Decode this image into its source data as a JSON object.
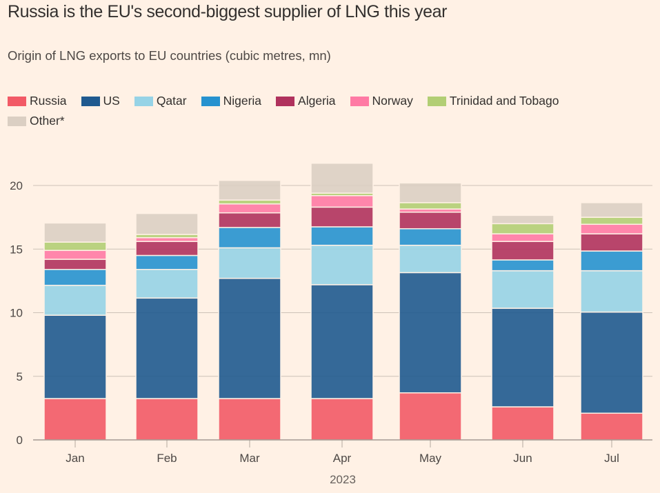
{
  "header": {
    "title": "Russia is the EU's second-biggest supplier of LNG this year",
    "subtitle": "Origin of LNG exports to EU countries (cubic metres, mn)"
  },
  "chart_data": {
    "type": "bar",
    "stacked": true,
    "title": "Russia is the EU's second-biggest supplier of LNG this year",
    "subtitle": "Origin of LNG exports to EU countries (cubic metres, mn)",
    "xlabel": "2023",
    "ylabel": "",
    "ylim": [
      0,
      22
    ],
    "yticks": [
      0,
      5,
      10,
      15,
      20
    ],
    "grid": true,
    "legend_position": "top-left",
    "categories": [
      "Jan",
      "Feb",
      "Mar",
      "Apr",
      "May",
      "Jun",
      "Jul"
    ],
    "series": [
      {
        "name": "Russia",
        "color": "#f25a66",
        "values": [
          3.25,
          3.25,
          3.25,
          3.25,
          3.7,
          2.6,
          2.1
        ]
      },
      {
        "name": "US",
        "color": "#1f5a8f",
        "values": [
          6.55,
          7.9,
          9.45,
          8.95,
          9.45,
          7.75,
          7.95
        ]
      },
      {
        "name": "Qatar",
        "color": "#96d3e6",
        "values": [
          2.35,
          2.25,
          2.4,
          3.1,
          2.15,
          2.95,
          3.25
        ]
      },
      {
        "name": "Nigeria",
        "color": "#2692cf",
        "values": [
          1.25,
          1.1,
          1.6,
          1.45,
          1.3,
          0.85,
          1.55
        ]
      },
      {
        "name": "Algeria",
        "color": "#b0325d",
        "values": [
          0.8,
          1.1,
          1.15,
          1.55,
          1.3,
          1.45,
          1.35
        ]
      },
      {
        "name": "Norway",
        "color": "#ff7aa4",
        "values": [
          0.7,
          0.3,
          0.7,
          0.9,
          0.25,
          0.6,
          0.75
        ]
      },
      {
        "name": "Trinidad and Tobago",
        "color": "#b2ce74",
        "values": [
          0.65,
          0.25,
          0.3,
          0.2,
          0.5,
          0.8,
          0.55
        ]
      },
      {
        "name": "Other*",
        "color": "#dbcfc3",
        "values": [
          1.5,
          1.65,
          1.55,
          2.35,
          1.55,
          0.65,
          1.15
        ]
      }
    ]
  }
}
